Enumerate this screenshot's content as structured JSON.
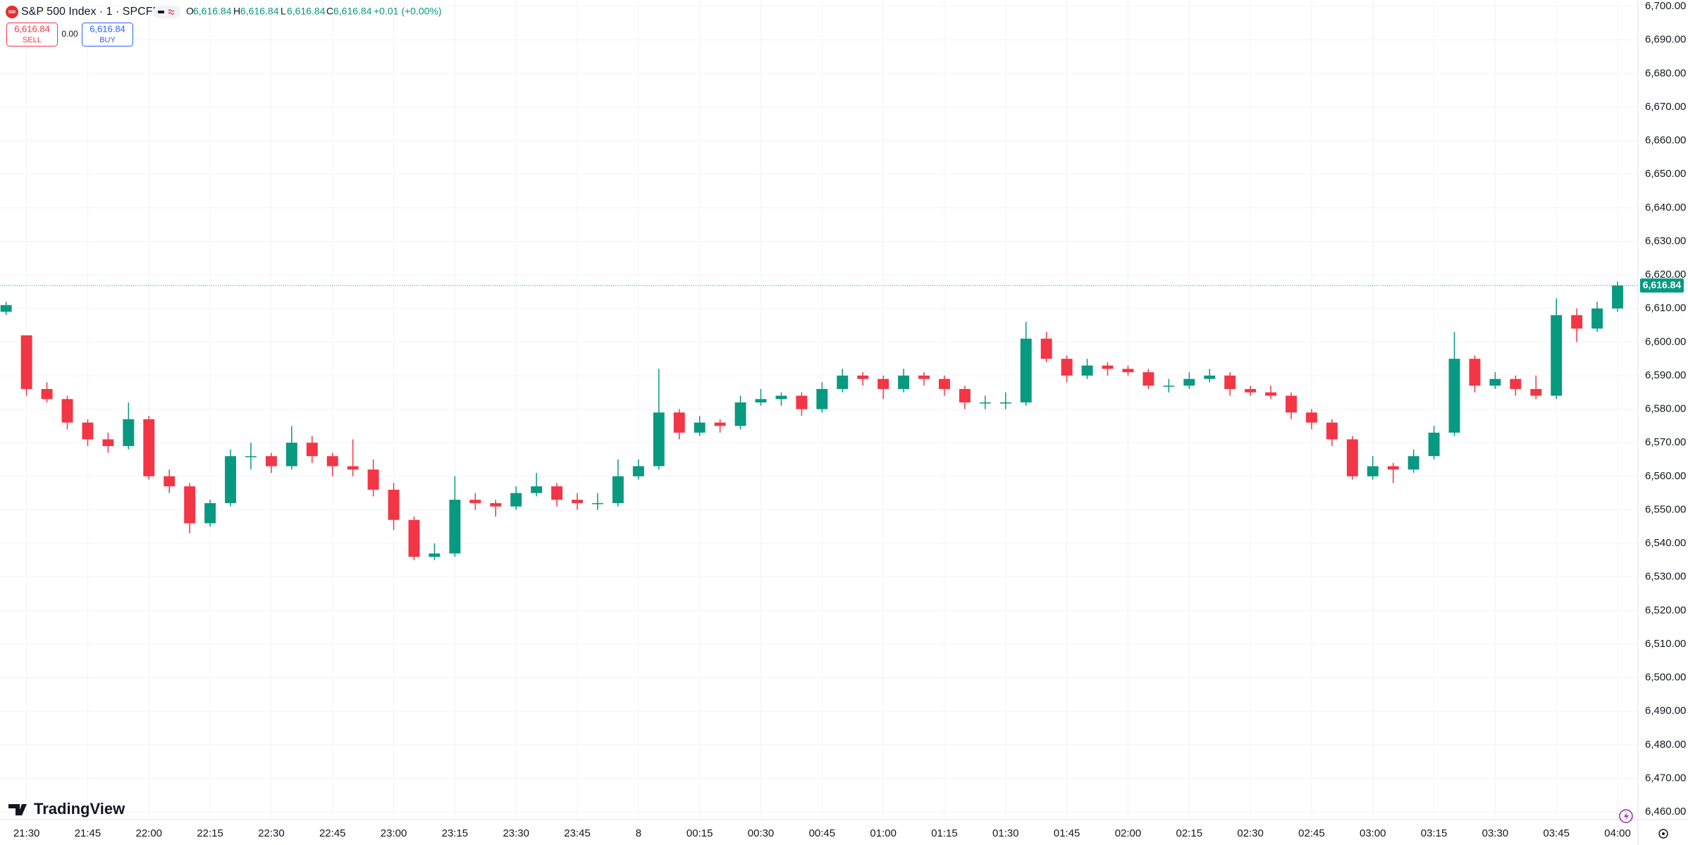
{
  "chart_data": {
    "type": "candlestick",
    "icon_text": "500",
    "title": "S&P 500 Index · 1 · SPCFD",
    "header": {
      "o_label": "O",
      "o": "6,616.84",
      "h_label": "H",
      "h": "6,616.84",
      "l_label": "L",
      "l": "6,616.84",
      "c_label": "C",
      "c": "6,616.84",
      "change": "+0.01 (+0.00%)"
    },
    "trade": {
      "sell_price": "6,616.84",
      "sell": "SELL",
      "spread": "0.00",
      "buy_price": "6,616.84",
      "buy": "BUY"
    },
    "brand": "TradingView",
    "up_color": "#089981",
    "down_color": "#f23645",
    "grid": true,
    "last_price": {
      "value": 6616.84,
      "label": "6,616.84"
    },
    "xlim": [
      -6.5,
      395
    ],
    "ylim": [
      6457.7,
      6701.9
    ],
    "xticks": [
      {
        "value": 0,
        "label": "21:30"
      },
      {
        "value": 15,
        "label": "21:45"
      },
      {
        "value": 30,
        "label": "22:00"
      },
      {
        "value": 45,
        "label": "22:15"
      },
      {
        "value": 60,
        "label": "22:30"
      },
      {
        "value": 75,
        "label": "22:45"
      },
      {
        "value": 90,
        "label": "23:00"
      },
      {
        "value": 105,
        "label": "23:15"
      },
      {
        "value": 120,
        "label": "23:30"
      },
      {
        "value": 135,
        "label": "23:45"
      },
      {
        "value": 150,
        "label": "8"
      },
      {
        "value": 165,
        "label": "00:15"
      },
      {
        "value": 180,
        "label": "00:30"
      },
      {
        "value": 195,
        "label": "00:45"
      },
      {
        "value": 210,
        "label": "01:00"
      },
      {
        "value": 225,
        "label": "01:15"
      },
      {
        "value": 240,
        "label": "01:30"
      },
      {
        "value": 255,
        "label": "01:45"
      },
      {
        "value": 270,
        "label": "02:00"
      },
      {
        "value": 285,
        "label": "02:15"
      },
      {
        "value": 300,
        "label": "02:30"
      },
      {
        "value": 315,
        "label": "02:45"
      },
      {
        "value": 330,
        "label": "03:00"
      },
      {
        "value": 345,
        "label": "03:15"
      },
      {
        "value": 360,
        "label": "03:30"
      },
      {
        "value": 375,
        "label": "03:45"
      },
      {
        "value": 390,
        "label": "04:00"
      }
    ],
    "yticks": [
      {
        "value": 6460,
        "label": "6,460.00"
      },
      {
        "value": 6470,
        "label": "6,470.00"
      },
      {
        "value": 6480,
        "label": "6,480.00"
      },
      {
        "value": 6490,
        "label": "6,490.00"
      },
      {
        "value": 6500,
        "label": "6,500.00"
      },
      {
        "value": 6510,
        "label": "6,510.00"
      },
      {
        "value": 6520,
        "label": "6,520.00"
      },
      {
        "value": 6530,
        "label": "6,530.00"
      },
      {
        "value": 6540,
        "label": "6,540.00"
      },
      {
        "value": 6550,
        "label": "6,550.00"
      },
      {
        "value": 6560,
        "label": "6,560.00"
      },
      {
        "value": 6570,
        "label": "6,570.00"
      },
      {
        "value": 6580,
        "label": "6,580.00"
      },
      {
        "value": 6590,
        "label": "6,590.00"
      },
      {
        "value": 6600,
        "label": "6,600.00"
      },
      {
        "value": 6610,
        "label": "6,610.00"
      },
      {
        "value": 6620,
        "label": "6,620.00"
      },
      {
        "value": 6630,
        "label": "6,630.00"
      },
      {
        "value": 6640,
        "label": "6,640.00"
      },
      {
        "value": 6650,
        "label": "6,650.00"
      },
      {
        "value": 6660,
        "label": "6,660.00"
      },
      {
        "value": 6670,
        "label": "6,670.00"
      },
      {
        "value": 6680,
        "label": "6,680.00"
      },
      {
        "value": 6690,
        "label": "6,690.00"
      },
      {
        "value": 6700,
        "label": "6,700.00"
      }
    ],
    "x": [
      -5,
      0,
      5,
      10,
      15,
      20,
      25,
      30,
      35,
      40,
      45,
      50,
      55,
      60,
      65,
      70,
      75,
      80,
      85,
      90,
      95,
      100,
      105,
      110,
      115,
      120,
      125,
      130,
      135,
      140,
      145,
      150,
      155,
      160,
      165,
      170,
      175,
      180,
      185,
      190,
      195,
      200,
      205,
      210,
      215,
      220,
      225,
      230,
      235,
      240,
      245,
      250,
      255,
      260,
      265,
      270,
      275,
      280,
      285,
      290,
      295,
      300,
      305,
      310,
      315,
      320,
      325,
      330,
      335,
      340,
      345,
      350,
      355,
      360,
      365,
      370,
      375,
      380,
      385,
      390
    ],
    "open": [
      6609,
      6602,
      6586,
      6583,
      6576,
      6571,
      6569,
      6577,
      6560,
      6557,
      6546,
      6552,
      6566,
      6566,
      6563,
      6570,
      6566,
      6563,
      6562,
      6556,
      6547,
      6536,
      6537,
      6553,
      6552,
      6551,
      6555,
      6557,
      6553,
      6552,
      6552,
      6560,
      6563,
      6579,
      6573,
      6576,
      6575,
      6582,
      6583,
      6584,
      6580,
      6586,
      6590,
      6589,
      6586,
      6590,
      6589,
      6586,
      6582,
      6582,
      6582,
      6601,
      6595,
      6590,
      6593,
      6592,
      6591,
      6587,
      6587,
      6589,
      6590,
      6586,
      6585,
      6584,
      6579,
      6576,
      6571,
      6560,
      6563,
      6562,
      6566,
      6573,
      6595,
      6587,
      6589,
      6586,
      6584,
      6608,
      6604,
      6610
    ],
    "high": [
      6612,
      6602,
      6588,
      6584,
      6577,
      6573,
      6582,
      6578,
      6562,
      6558,
      6553,
      6568,
      6570,
      6567,
      6575,
      6572,
      6567,
      6571,
      6565,
      6558,
      6548,
      6540,
      6560,
      6555,
      6553,
      6557,
      6561,
      6558,
      6555,
      6555,
      6565,
      6565,
      6592,
      6580,
      6578,
      6577,
      6584,
      6586,
      6585,
      6585,
      6588,
      6592,
      6591,
      6590,
      6592,
      6591,
      6590,
      6587,
      6584,
      6585,
      6606,
      6603,
      6596,
      6595,
      6594,
      6593,
      6592,
      6589,
      6591,
      6592,
      6591,
      6587,
      6587,
      6585,
      6580,
      6577,
      6572,
      6566,
      6564,
      6568,
      6575,
      6603,
      6596,
      6591,
      6590,
      6590,
      6613,
      6610,
      6612,
      6618
    ],
    "low": [
      6608,
      6584,
      6582,
      6574,
      6569,
      6567,
      6568,
      6559,
      6555,
      6543,
      6545,
      6551,
      6562,
      6561,
      6562,
      6564,
      6560,
      6560,
      6554,
      6544,
      6535,
      6535,
      6536,
      6550,
      6548,
      6550,
      6554,
      6551,
      6550,
      6550,
      6551,
      6559,
      6562,
      6571,
      6572,
      6573,
      6574,
      6581,
      6581,
      6578,
      6579,
      6585,
      6587,
      6583,
      6585,
      6587,
      6584,
      6580,
      6580,
      6580,
      6581,
      6594,
      6588,
      6589,
      6590,
      6590,
      6586,
      6585,
      6586,
      6588,
      6584,
      6584,
      6583,
      6577,
      6574,
      6569,
      6559,
      6559,
      6558,
      6561,
      6565,
      6572,
      6585,
      6586,
      6584,
      6583,
      6583,
      6600,
      6603,
      6609
    ],
    "close": [
      6611,
      6586,
      6583,
      6576,
      6571,
      6569,
      6577,
      6560,
      6557,
      6546,
      6552,
      6566,
      6566,
      6563,
      6570,
      6566,
      6563,
      6562,
      6556,
      6547,
      6536,
      6537,
      6553,
      6552,
      6551,
      6555,
      6557,
      6553,
      6552,
      6552,
      6560,
      6563,
      6579,
      6573,
      6576,
      6575,
      6582,
      6583,
      6584,
      6580,
      6586,
      6590,
      6589,
      6586,
      6590,
      6589,
      6586,
      6582,
      6582,
      6582,
      6601,
      6595,
      6590,
      6593,
      6592,
      6591,
      6587,
      6587,
      6589,
      6590,
      6586,
      6585,
      6584,
      6579,
      6576,
      6571,
      6560,
      6563,
      6562,
      6566,
      6573,
      6595,
      6587,
      6589,
      6586,
      6584,
      6608,
      6604,
      6610,
      6616.84
    ]
  }
}
